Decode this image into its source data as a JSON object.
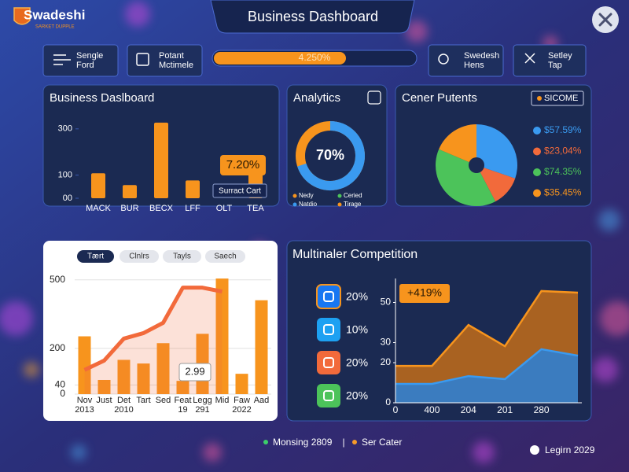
{
  "header": {
    "brand": "Swadeshi",
    "tagline": "SARKET DUPPLE",
    "title": "Business Dashboard"
  },
  "toolbar": {
    "buttons": [
      [
        "Sengle",
        "Ford"
      ],
      [
        "Potant",
        "Mctimele"
      ],
      [
        "Swedesh",
        "Hens"
      ],
      [
        "Setley",
        "Tap"
      ]
    ],
    "progress_label": "4.250%"
  },
  "chart_data": [
    {
      "type": "bar",
      "title": "Business Daslboard",
      "categories": [
        "MACK",
        "BUR",
        "BECX",
        "LFF",
        "OLT",
        "TEA"
      ],
      "values": [
        108,
        57,
        327,
        77,
        null,
        115
      ],
      "color": "#f7941d",
      "ylim": [
        0,
        330
      ],
      "yticks": [
        {
          "value": 0,
          "label": "00"
        },
        100,
        300
      ],
      "badge": "7.20%",
      "note": "Surract Cart"
    },
    {
      "type": "donut",
      "title": "Analytics",
      "values": [
        70
      ],
      "value_labels": [
        "70%"
      ],
      "color": "#3a9af0",
      "track_color": "#f7941d",
      "legend": [
        {
          "name": "Nedy",
          "color": "#f7941d"
        },
        {
          "name": "Ceried",
          "color": "#4cc35a"
        },
        {
          "name": "Natdio",
          "color": "#3a9af0"
        },
        {
          "name": "Tirage",
          "color": "#f7941d"
        }
      ]
    },
    {
      "type": "pie",
      "title": "Cener Putents",
      "button": "SICOME",
      "values": [
        57.59,
        23.04,
        74.35,
        35.45
      ],
      "value_labels": [
        "$57.59%",
        "$23,04%",
        "$74.35%",
        "$35.45%"
      ],
      "colors": [
        "#3a9af0",
        "#f26a3b",
        "#4cc35a",
        "#f7941d"
      ]
    },
    {
      "type": "combo",
      "tabs": [
        "Tært",
        "Clnlrs",
        "Tayls",
        "Saech"
      ],
      "categories": [
        "Nov",
        "Just",
        "Det",
        "Tart",
        "Sed",
        "Feat",
        "Legg",
        "Mid",
        "Faw",
        "Aad"
      ],
      "sublabels": [
        "2013",
        null,
        "2010",
        null,
        null,
        "19",
        "291",
        null,
        "2022",
        null
      ],
      "series": [
        {
          "type": "bar",
          "color": "#f7941d",
          "values": [
            253,
            62,
            150,
            134,
            223,
            58,
            264,
            506,
            89,
            411
          ]
        },
        {
          "type": "line",
          "color": "#f26a3b",
          "values": [
            106,
            147,
            243,
            267,
            312,
            466,
            466,
            449,
            null,
            null
          ]
        }
      ],
      "ylim": [
        0,
        520
      ],
      "yticks": [
        0,
        40,
        200,
        500
      ],
      "grid": true,
      "callout": "2.99"
    },
    {
      "type": "area",
      "title": "Multinaler Competition",
      "categories": [
        "0",
        "400",
        "204",
        "201",
        "280",
        null
      ],
      "series": [
        {
          "color": "#b9681c",
          "values": [
            18.4,
            18.4,
            38.8,
            28.2,
            55.7,
            54.9
          ]
        },
        {
          "color": "#2f7fd0",
          "values": [
            9.4,
            9.4,
            13.3,
            11.8,
            26.7,
            23.5
          ]
        }
      ],
      "ylim": [
        0,
        60
      ],
      "yticks": [
        0,
        20,
        30,
        50
      ],
      "callout": "+419%",
      "social": [
        {
          "label": "20%",
          "color": "#1877f2"
        },
        {
          "label": "10%",
          "color": "#1da1f2"
        },
        {
          "label": "20%",
          "color": "#f26a3b"
        },
        {
          "label": "20%",
          "color": "#4cc35a"
        }
      ]
    }
  ],
  "footer": {
    "items": [
      {
        "label": "Monsing 2809",
        "color": "#3ccf6a"
      },
      {
        "label": "Ser Cater",
        "color": "#f59a2a"
      }
    ],
    "login": "Legirn 2029"
  }
}
